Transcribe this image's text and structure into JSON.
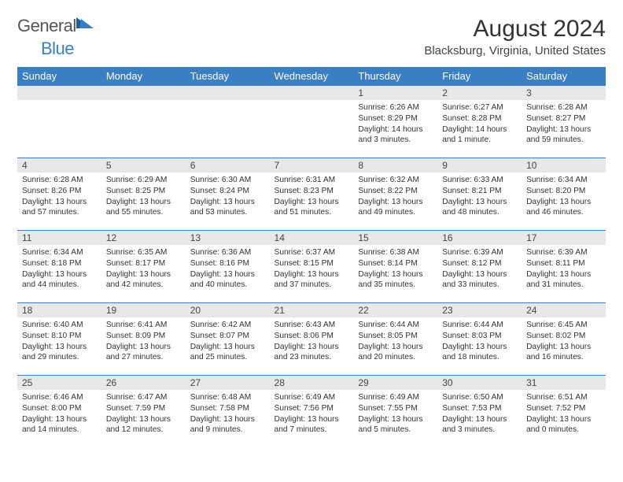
{
  "brand": {
    "text1": "General",
    "text2": "Blue",
    "accent": "#3a7fc4"
  },
  "title": "August 2024",
  "location": "Blacksburg, Virginia, United States",
  "header_bg": "#3a7fc4",
  "daynum_bg": "#e8e8e8",
  "border_color": "#3a7fc4",
  "font_family": "Arial, Helvetica, sans-serif",
  "columns": [
    "Sunday",
    "Monday",
    "Tuesday",
    "Wednesday",
    "Thursday",
    "Friday",
    "Saturday"
  ],
  "weeks": [
    [
      null,
      null,
      null,
      null,
      {
        "n": "1",
        "sr": "6:26 AM",
        "ss": "8:29 PM",
        "dl": "14 hours and 3 minutes."
      },
      {
        "n": "2",
        "sr": "6:27 AM",
        "ss": "8:28 PM",
        "dl": "14 hours and 1 minute."
      },
      {
        "n": "3",
        "sr": "6:28 AM",
        "ss": "8:27 PM",
        "dl": "13 hours and 59 minutes."
      }
    ],
    [
      {
        "n": "4",
        "sr": "6:28 AM",
        "ss": "8:26 PM",
        "dl": "13 hours and 57 minutes."
      },
      {
        "n": "5",
        "sr": "6:29 AM",
        "ss": "8:25 PM",
        "dl": "13 hours and 55 minutes."
      },
      {
        "n": "6",
        "sr": "6:30 AM",
        "ss": "8:24 PM",
        "dl": "13 hours and 53 minutes."
      },
      {
        "n": "7",
        "sr": "6:31 AM",
        "ss": "8:23 PM",
        "dl": "13 hours and 51 minutes."
      },
      {
        "n": "8",
        "sr": "6:32 AM",
        "ss": "8:22 PM",
        "dl": "13 hours and 49 minutes."
      },
      {
        "n": "9",
        "sr": "6:33 AM",
        "ss": "8:21 PM",
        "dl": "13 hours and 48 minutes."
      },
      {
        "n": "10",
        "sr": "6:34 AM",
        "ss": "8:20 PM",
        "dl": "13 hours and 46 minutes."
      }
    ],
    [
      {
        "n": "11",
        "sr": "6:34 AM",
        "ss": "8:18 PM",
        "dl": "13 hours and 44 minutes."
      },
      {
        "n": "12",
        "sr": "6:35 AM",
        "ss": "8:17 PM",
        "dl": "13 hours and 42 minutes."
      },
      {
        "n": "13",
        "sr": "6:36 AM",
        "ss": "8:16 PM",
        "dl": "13 hours and 40 minutes."
      },
      {
        "n": "14",
        "sr": "6:37 AM",
        "ss": "8:15 PM",
        "dl": "13 hours and 37 minutes."
      },
      {
        "n": "15",
        "sr": "6:38 AM",
        "ss": "8:14 PM",
        "dl": "13 hours and 35 minutes."
      },
      {
        "n": "16",
        "sr": "6:39 AM",
        "ss": "8:12 PM",
        "dl": "13 hours and 33 minutes."
      },
      {
        "n": "17",
        "sr": "6:39 AM",
        "ss": "8:11 PM",
        "dl": "13 hours and 31 minutes."
      }
    ],
    [
      {
        "n": "18",
        "sr": "6:40 AM",
        "ss": "8:10 PM",
        "dl": "13 hours and 29 minutes."
      },
      {
        "n": "19",
        "sr": "6:41 AM",
        "ss": "8:09 PM",
        "dl": "13 hours and 27 minutes."
      },
      {
        "n": "20",
        "sr": "6:42 AM",
        "ss": "8:07 PM",
        "dl": "13 hours and 25 minutes."
      },
      {
        "n": "21",
        "sr": "6:43 AM",
        "ss": "8:06 PM",
        "dl": "13 hours and 23 minutes."
      },
      {
        "n": "22",
        "sr": "6:44 AM",
        "ss": "8:05 PM",
        "dl": "13 hours and 20 minutes."
      },
      {
        "n": "23",
        "sr": "6:44 AM",
        "ss": "8:03 PM",
        "dl": "13 hours and 18 minutes."
      },
      {
        "n": "24",
        "sr": "6:45 AM",
        "ss": "8:02 PM",
        "dl": "13 hours and 16 minutes."
      }
    ],
    [
      {
        "n": "25",
        "sr": "6:46 AM",
        "ss": "8:00 PM",
        "dl": "13 hours and 14 minutes."
      },
      {
        "n": "26",
        "sr": "6:47 AM",
        "ss": "7:59 PM",
        "dl": "13 hours and 12 minutes."
      },
      {
        "n": "27",
        "sr": "6:48 AM",
        "ss": "7:58 PM",
        "dl": "13 hours and 9 minutes."
      },
      {
        "n": "28",
        "sr": "6:49 AM",
        "ss": "7:56 PM",
        "dl": "13 hours and 7 minutes."
      },
      {
        "n": "29",
        "sr": "6:49 AM",
        "ss": "7:55 PM",
        "dl": "13 hours and 5 minutes."
      },
      {
        "n": "30",
        "sr": "6:50 AM",
        "ss": "7:53 PM",
        "dl": "13 hours and 3 minutes."
      },
      {
        "n": "31",
        "sr": "6:51 AM",
        "ss": "7:52 PM",
        "dl": "13 hours and 0 minutes."
      }
    ]
  ],
  "labels": {
    "sunrise": "Sunrise:",
    "sunset": "Sunset:",
    "daylight": "Daylight:"
  }
}
